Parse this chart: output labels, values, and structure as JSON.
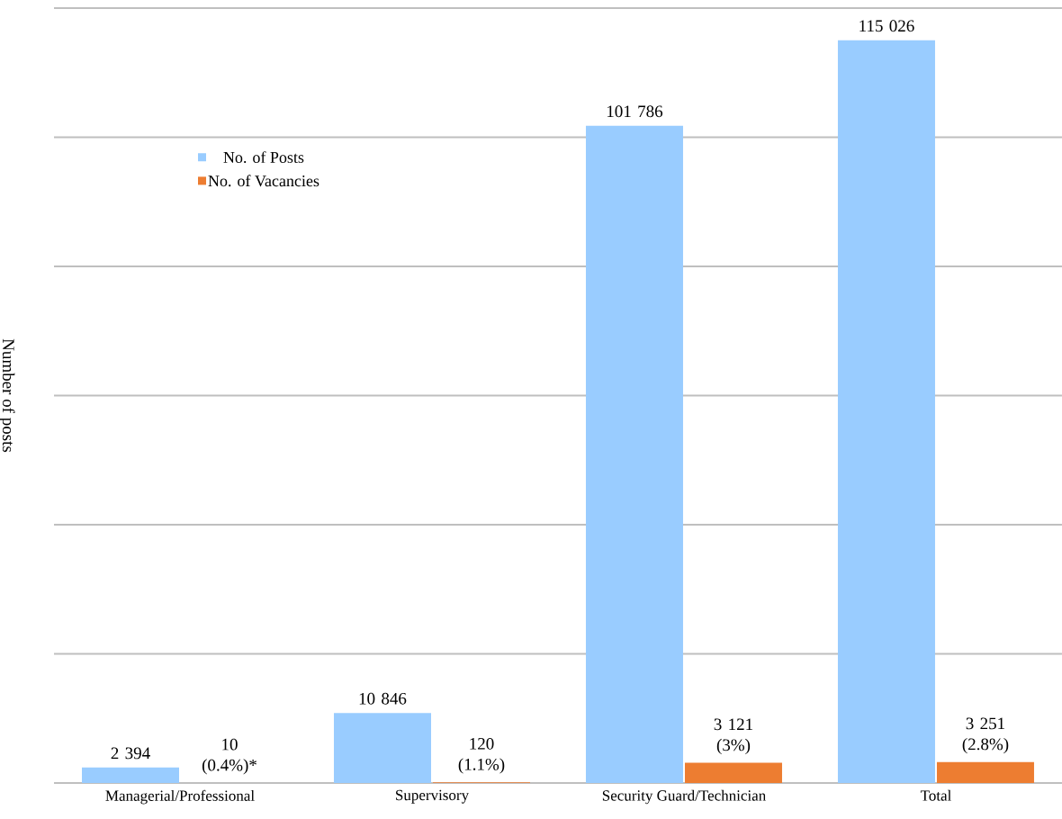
{
  "chart_data": {
    "type": "bar",
    "ylabel": "Number of posts",
    "categories": [
      "Managerial/Professional",
      "Supervisory",
      "Security Guard/Technician",
      "Total"
    ],
    "series": [
      {
        "name": "No. of Posts",
        "color": "#99ccff",
        "values": [
          2394,
          10846,
          101786,
          115026
        ],
        "value_labels": [
          "2 394",
          "10 846",
          "101 786",
          "115 026"
        ]
      },
      {
        "name": "No. of Vacancies",
        "color": "#ed7d31",
        "values": [
          10,
          120,
          3121,
          3251
        ],
        "value_labels": [
          "10 (0.4%)*",
          "120 (1.1%)",
          "3 121 (3%)",
          "3 251 (2.8%)"
        ]
      }
    ],
    "ylim": [
      0,
      120000
    ],
    "yticks": [
      {
        "value": 0,
        "label": null
      },
      {
        "value": 20000,
        "label": null
      },
      {
        "value": 40000,
        "label": null
      },
      {
        "value": 60000,
        "label": null
      },
      {
        "value": 80000,
        "label": null
      },
      {
        "value": 100000,
        "label": null
      },
      {
        "value": 120000,
        "label": null
      }
    ],
    "grid": "y",
    "legend": "top left",
    "tick_labels": "x"
  }
}
